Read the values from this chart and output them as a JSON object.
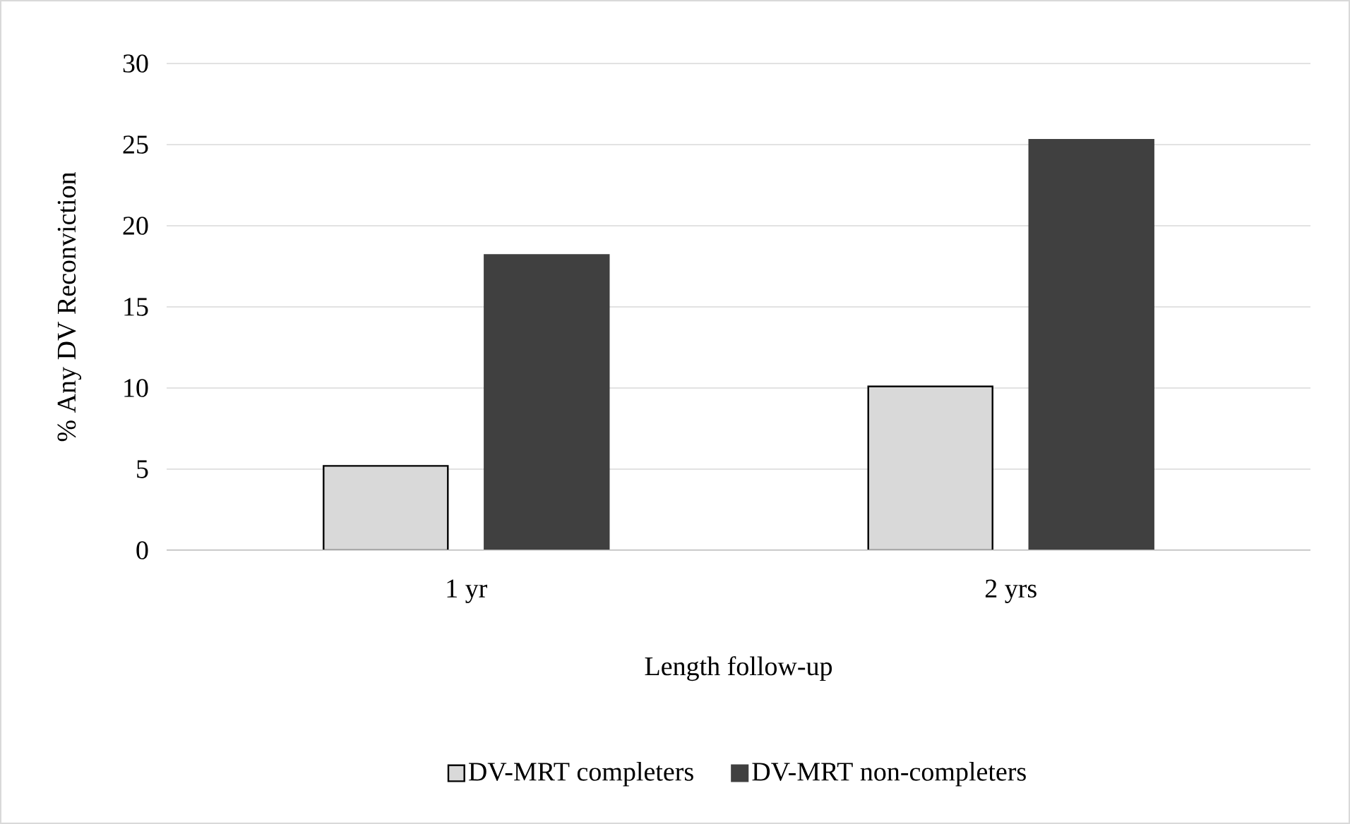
{
  "chart_data": {
    "type": "bar",
    "xlabel": "Length follow-up",
    "ylabel": "% Any DV Reconviction",
    "categories": [
      "1 yr",
      "2 yrs"
    ],
    "series": [
      {
        "name": "DV-MRT completers",
        "color": "#d9d9d9",
        "values": [
          5.2,
          10.1
        ]
      },
      {
        "name": "DV-MRT non-completers",
        "color": "#404040",
        "values": [
          18.2,
          25.3
        ]
      }
    ],
    "ylim": [
      0,
      30
    ],
    "yticks": [
      0,
      5,
      10,
      15,
      20,
      25,
      30
    ],
    "grid": "y",
    "legend": "bottom"
  }
}
